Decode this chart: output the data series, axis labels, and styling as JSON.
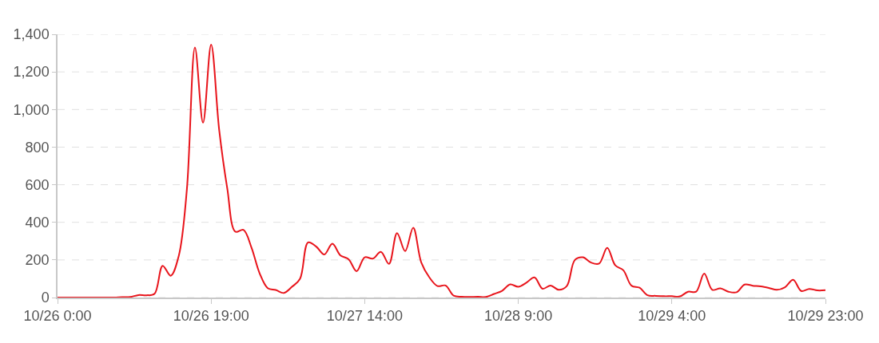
{
  "chart_data": {
    "type": "line",
    "categories": [
      "10/26 0:00",
      null,
      null,
      null,
      null,
      null,
      null,
      null,
      null,
      null,
      null,
      null,
      null,
      null,
      null,
      null,
      null,
      null,
      null,
      "10/26 19:00",
      null,
      null,
      null,
      null,
      null,
      null,
      null,
      null,
      null,
      null,
      null,
      null,
      null,
      null,
      null,
      null,
      null,
      null,
      "10/27 14:00",
      null,
      null,
      null,
      null,
      null,
      null,
      null,
      null,
      null,
      null,
      null,
      null,
      null,
      null,
      null,
      null,
      null,
      null,
      "10/28 9:00",
      null,
      null,
      null,
      null,
      null,
      null,
      null,
      null,
      null,
      null,
      null,
      null,
      null,
      null,
      null,
      null,
      null,
      null,
      "10/29 4:00",
      null,
      null,
      null,
      null,
      null,
      null,
      null,
      null,
      null,
      null,
      null,
      null,
      null,
      null,
      null,
      null,
      null,
      null,
      "10/29 23:00"
    ],
    "series": [
      {
        "color": "#e8141b",
        "values": [
          0,
          0,
          0,
          0,
          0,
          0,
          0,
          0,
          2,
          3,
          13,
          12,
          20,
          169,
          116,
          222,
          574,
          1330,
          930,
          1345,
          890,
          580,
          350,
          360,
          265,
          129,
          50,
          40,
          24,
          57,
          100,
          293,
          271,
          229,
          286,
          224,
          204,
          140,
          214,
          207,
          243,
          179,
          343,
          247,
          371,
          186,
          107,
          61,
          64,
          10,
          4,
          3,
          4,
          3,
          19,
          36,
          70,
          57,
          79,
          107,
          47,
          64,
          41,
          61,
          200,
          214,
          186,
          181,
          264,
          171,
          145,
          63,
          52,
          12,
          9,
          7,
          7,
          6,
          31,
          31,
          127,
          41,
          49,
          31,
          28,
          69,
          63,
          59,
          51,
          41,
          55,
          94,
          35,
          46,
          38,
          39
        ]
      }
    ],
    "ylim": [
      0,
      1400
    ],
    "yticks": [
      0,
      200,
      400,
      600,
      800,
      {
        "value": 1000,
        "label": "1,000"
      },
      {
        "value": 1200,
        "label": "1,200"
      },
      {
        "value": 1400,
        "label": "1,400"
      }
    ],
    "grid": "y"
  }
}
